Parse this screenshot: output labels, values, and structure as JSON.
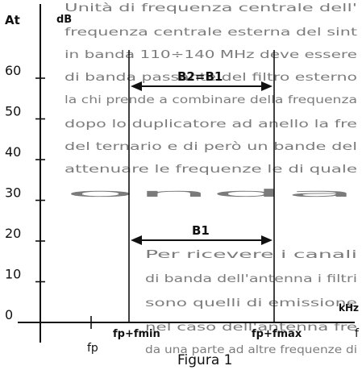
{
  "background_text": [
    "Unità di frequenza centrale dell'",
    "frequenza centrale esterna del sint",
    "in banda 110÷140 MHz deve essere",
    "di banda passante del filtro esterno",
    "la chi prende a combinare della frequenza",
    "dopo lo duplicatore ad anello la fre",
    "del ternario e di però un bande del",
    "attenuare le frequenze le di quale",
    "onda",
    "Per ricevere i canali",
    "di banda dell'antenna i filtri",
    "sono quelli di emissione",
    "nel caso dell'antenna fre",
    "da una parte ad altre frequenze di"
  ],
  "diagram": {
    "y_axis_label_1": "At",
    "y_axis_label_2": "dB",
    "x_axis_unit": "kHz",
    "x_axis_symbol": "f",
    "y_ticks": [
      {
        "label": "60",
        "value": 60
      },
      {
        "label": "50",
        "value": 50
      },
      {
        "label": "40",
        "value": 40
      },
      {
        "label": "30",
        "value": 30
      },
      {
        "label": "20",
        "value": 20
      },
      {
        "label": "10",
        "value": 10
      },
      {
        "label": "0",
        "value": 0
      }
    ],
    "x_labels": {
      "fp": "fp",
      "fmin": "fp+fmin",
      "fmax": "fp+fmax"
    },
    "arrow_upper_label": "B2=B1",
    "arrow_lower_label": "B1",
    "caption": "Figura 1"
  }
}
